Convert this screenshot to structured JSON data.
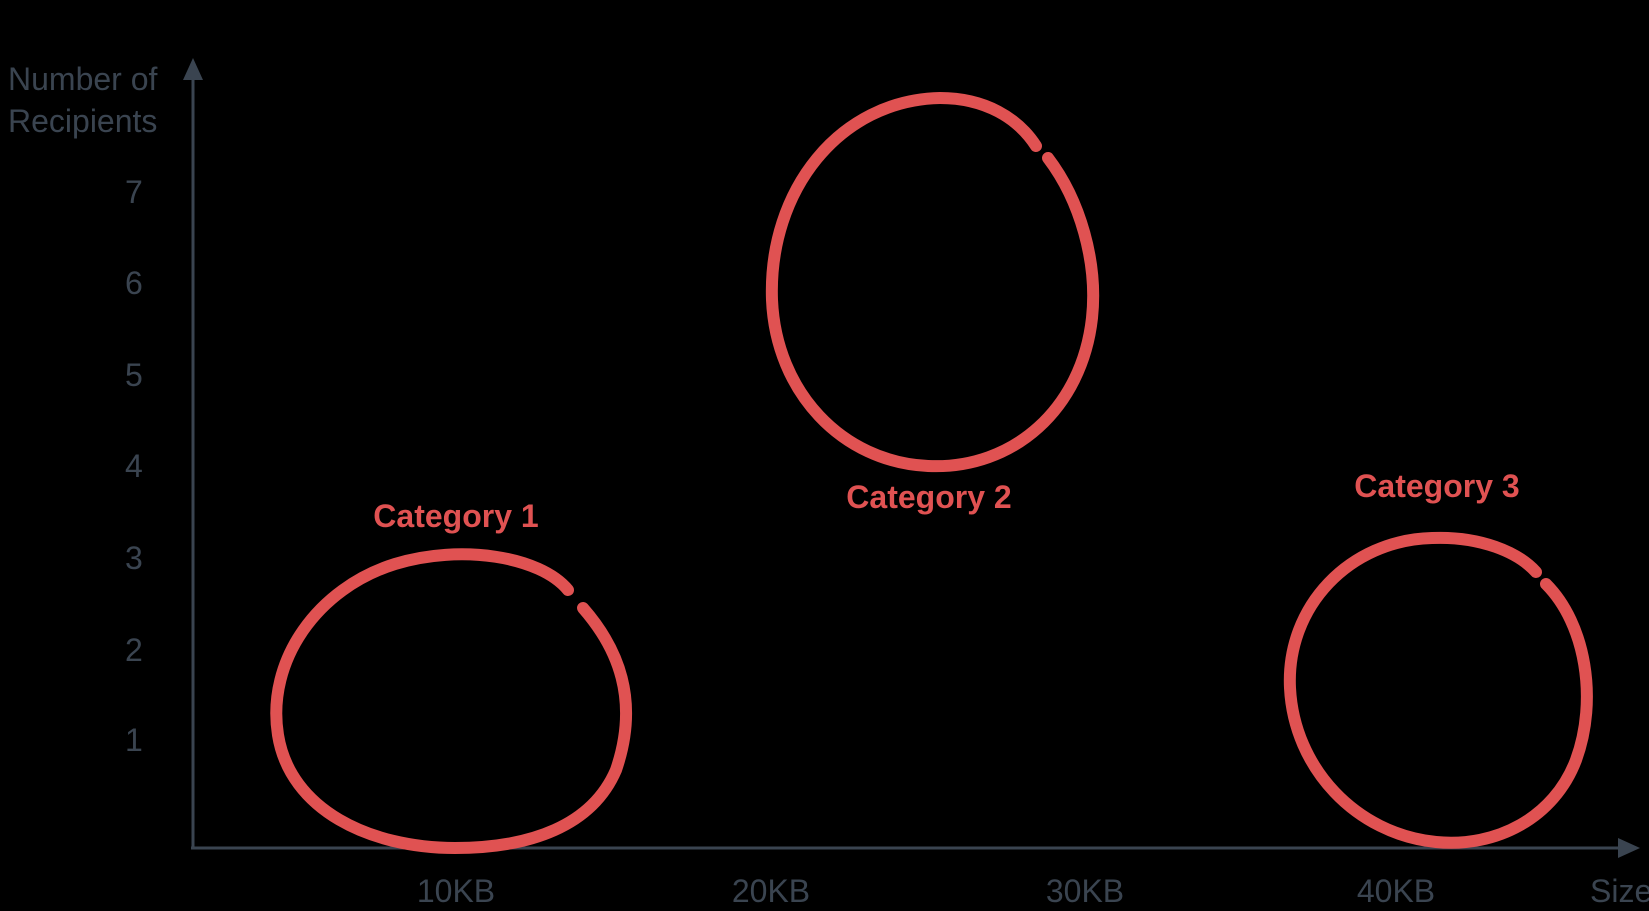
{
  "axes": {
    "y_title_line1": "Number of",
    "y_title_line2": "Recipients",
    "x_title": "Size",
    "y_ticks": [
      "1",
      "2",
      "3",
      "4",
      "5",
      "6",
      "7"
    ],
    "x_ticks": [
      "10KB",
      "20KB",
      "30KB",
      "40KB"
    ]
  },
  "clusters": [
    {
      "label": "Category 1"
    },
    {
      "label": "Category 2"
    },
    {
      "label": "Category 3"
    }
  ],
  "colors": {
    "axis": "#3a4450",
    "cluster": "#e05252"
  }
}
